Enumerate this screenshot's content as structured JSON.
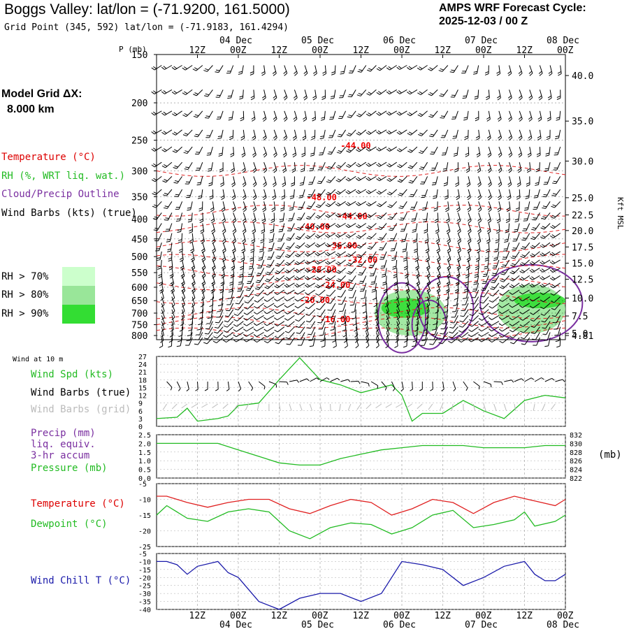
{
  "header": {
    "title": "Boggs Valley:  lat/lon = (-71.9200, 161.5000)",
    "grid_point": "Grid Point (345, 592) lat/lon = (-71.9183, 161.4294)",
    "cycle_label": "AMPS WRF Forecast Cycle:",
    "cycle_value": "2025-12-03 / 00  Z"
  },
  "model_grid": {
    "label": "Model Grid ΔX:",
    "value": "8.000 km"
  },
  "legend": {
    "temperature": "Temperature (°C)",
    "rh": "RH (%, WRT liq. wat.)",
    "cloud": "Cloud/Precip Outline",
    "wind_barbs": "Wind Barbs (kts) (true)",
    "rh_bins": [
      "RH > 70%",
      "RH > 80%",
      "RH > 90%"
    ],
    "rh_colors": [
      "#ccffcc",
      "#99e699",
      "#33dd33"
    ]
  },
  "time_axis": {
    "top_hours": [
      "12Z",
      "00Z",
      "12Z",
      "00Z",
      "12Z",
      "00Z",
      "12Z",
      "00Z",
      "12Z",
      "00Z"
    ],
    "top_dates": [
      {
        "label": "04 Dec",
        "slot": 1
      },
      {
        "label": "05 Dec",
        "slot": 3
      },
      {
        "label": "06 Dec",
        "slot": 5
      },
      {
        "label": "07 Dec",
        "slot": 7
      },
      {
        "label": "08 Dec",
        "slot": 9
      }
    ],
    "bottom_hours": [
      "12Z",
      "00Z",
      "12Z",
      "00Z",
      "12Z",
      "00Z",
      "12Z",
      "00Z",
      "12Z",
      "00Z"
    ],
    "bottom_dates": [
      {
        "label": "04 Dec",
        "slot": 1
      },
      {
        "label": "05 Dec",
        "slot": 3
      },
      {
        "label": "06 Dec",
        "slot": 5
      },
      {
        "label": "07 Dec",
        "slot": 7
      },
      {
        "label": "08 Dec",
        "slot": 9
      }
    ]
  },
  "chart_data": [
    {
      "type": "heatmap",
      "name": "upper-air cross section",
      "ylabel": "P (mb)",
      "ylabel_right": "Kft MSL",
      "pressure_ticks": [
        "150",
        "200",
        "250",
        "300",
        "350",
        "400",
        "450",
        "500",
        "550",
        "600",
        "650",
        "700",
        "750",
        "800"
      ],
      "height_ticks": [
        "40.0",
        "35.0",
        "30.0",
        "25.0",
        "22.5",
        "20.0",
        "17.5",
        "15.0",
        "12.5",
        "10.0",
        "7.5",
        "5.0",
        "4.81"
      ],
      "height_tick_pressures": [
        170,
        223,
        283,
        352,
        390,
        428,
        472,
        520,
        572,
        640,
        712,
        790,
        800
      ],
      "temperature_labels": [
        {
          "text": "-44.00",
          "hour": 54,
          "p": 257
        },
        {
          "text": "-48.00",
          "hour": 44,
          "p": 350
        },
        {
          "text": "-44.00",
          "hour": 53,
          "p": 392
        },
        {
          "text": "-40.00",
          "hour": 42,
          "p": 417
        },
        {
          "text": "-36.00",
          "hour": 50,
          "p": 466
        },
        {
          "text": "-32.00",
          "hour": 56,
          "p": 508
        },
        {
          "text": "-28.00",
          "hour": 44,
          "p": 538
        },
        {
          "text": "-24.00",
          "hour": 48,
          "p": 590
        },
        {
          "text": "-20.00",
          "hour": 42,
          "p": 645
        },
        {
          "text": "-16.00",
          "hour": 48,
          "p": 724
        }
      ],
      "rh_regions": [
        {
          "level": 2,
          "hours": [
            64,
            85
          ],
          "p": [
            610,
            800
          ]
        },
        {
          "level": 2,
          "hours": [
            100,
            120
          ],
          "p": [
            590,
            790
          ]
        },
        {
          "level": 3,
          "hours": [
            66,
            80
          ],
          "p": [
            640,
            720
          ]
        },
        {
          "level": 3,
          "hours": [
            105,
            120
          ],
          "p": [
            620,
            680
          ]
        }
      ]
    },
    {
      "type": "line",
      "name": "Wind at 10 m",
      "title": "Wind at 10 m",
      "legend": [
        "Wind Spd (kts)",
        "Wind Barbs (true)",
        "Wind Barbs (grid)"
      ],
      "x_hours": [
        0,
        6,
        9,
        12,
        18,
        21,
        24,
        30,
        36,
        42,
        48,
        54,
        60,
        66,
        69,
        72,
        75,
        78,
        84,
        90,
        96,
        102,
        108,
        114,
        120
      ],
      "values": [
        3,
        3.5,
        7,
        2,
        3,
        4,
        8,
        9,
        18,
        26.5,
        18,
        16,
        13,
        15,
        16,
        12,
        2,
        5,
        5,
        10,
        6,
        3,
        10,
        12,
        11
      ],
      "ylim": [
        0,
        27
      ],
      "yticks": [
        "0",
        "3",
        "6",
        "9",
        "12",
        "15",
        "18",
        "21",
        "24",
        "27"
      ]
    },
    {
      "type": "line",
      "name": "Precip and Pressure",
      "legend": [
        "Precip (mm)",
        "liq. equiv.",
        "3-hr accum",
        "Pressure (mb)"
      ],
      "x_hours": [
        0,
        6,
        12,
        18,
        24,
        30,
        36,
        42,
        48,
        54,
        60,
        66,
        72,
        78,
        84,
        90,
        96,
        102,
        108,
        114,
        120
      ],
      "pressure": [
        830,
        830,
        830,
        830,
        828.5,
        827,
        825.5,
        825,
        825,
        826.5,
        827.5,
        828.5,
        829,
        829.5,
        829.5,
        829.5,
        829,
        829,
        829,
        829.5,
        829.5
      ],
      "ylim_left": [
        0.0,
        2.5
      ],
      "yticks_left": [
        "0.0",
        "0.5",
        "1.0",
        "1.5",
        "2.0",
        "2.5"
      ],
      "ylim_right": [
        822,
        832
      ],
      "yticks_right": [
        "822",
        "824",
        "826",
        "828",
        "830",
        "832"
      ],
      "right_unit": "(mb)"
    },
    {
      "type": "line",
      "name": "Temperature and Dewpoint",
      "legend": [
        "Temperature (°C)",
        "Dewpoint (°C)"
      ],
      "series": [
        {
          "name": "Temperature",
          "x_hours": [
            0,
            3,
            9,
            15,
            21,
            27,
            33,
            39,
            45,
            51,
            57,
            63,
            69,
            75,
            81,
            87,
            93,
            99,
            105,
            111,
            117,
            120
          ],
          "values": [
            -9,
            -9,
            -11,
            -12.5,
            -11,
            -10,
            -10,
            -13,
            -14.5,
            -12,
            -10,
            -11,
            -15,
            -13,
            -10,
            -11,
            -14.5,
            -11,
            -9,
            -10.5,
            -12,
            -10
          ]
        },
        {
          "name": "Dewpoint",
          "x_hours": [
            0,
            3,
            9,
            15,
            21,
            27,
            33,
            39,
            45,
            51,
            57,
            63,
            69,
            75,
            81,
            87,
            93,
            99,
            105,
            108,
            111,
            117,
            120
          ],
          "values": [
            -15,
            -12,
            -16,
            -17,
            -14,
            -13,
            -14,
            -20,
            -22.5,
            -19,
            -17.5,
            -18,
            -21,
            -19,
            -15,
            -13.5,
            -19,
            -18,
            -16.5,
            -14,
            -18.5,
            -17,
            -15
          ]
        }
      ],
      "ylim": [
        -25,
        -5
      ],
      "yticks": [
        "-25",
        "-20",
        "-15",
        "-10",
        "-5"
      ]
    },
    {
      "type": "line",
      "name": "Wind Chill",
      "legend": [
        "Wind Chill T (°C)"
      ],
      "x_hours": [
        0,
        3,
        6,
        9,
        12,
        18,
        21,
        24,
        30,
        36,
        42,
        48,
        54,
        60,
        66,
        69,
        72,
        78,
        84,
        90,
        96,
        102,
        108,
        111,
        114,
        117,
        120
      ],
      "values": [
        -10,
        -10,
        -12,
        -18,
        -13,
        -10,
        -17,
        -20,
        -35,
        -40,
        -33,
        -30,
        -30,
        -35,
        -30,
        -20,
        -10,
        -12,
        -15,
        -25,
        -20,
        -13,
        -10,
        -18,
        -22,
        -22,
        -18
      ],
      "ylim": [
        -40,
        -5
      ],
      "yticks": [
        "-40",
        "-35",
        "-30",
        "-25",
        "-20",
        "-15",
        "-10",
        "-5"
      ]
    }
  ]
}
